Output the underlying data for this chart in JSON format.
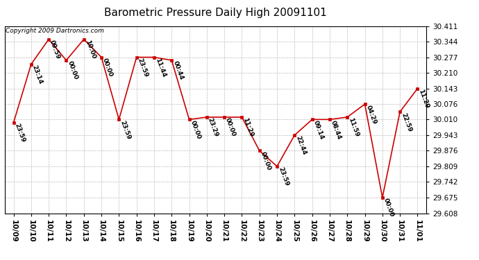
{
  "title": "Barometric Pressure Daily High 20091101",
  "copyright": "Copyright 2009 Dartronics.com",
  "x_labels": [
    "10/09",
    "10/10",
    "10/11",
    "10/12",
    "10/13",
    "10/14",
    "10/15",
    "10/16",
    "10/17",
    "10/18",
    "10/19",
    "10/20",
    "10/21",
    "10/22",
    "10/23",
    "10/24",
    "10/25",
    "10/26",
    "10/27",
    "10/28",
    "10/29",
    "10/30",
    "10/31",
    "11/01"
  ],
  "x_values": [
    0,
    1,
    2,
    3,
    4,
    5,
    6,
    7,
    8,
    9,
    10,
    11,
    12,
    13,
    14,
    15,
    16,
    17,
    18,
    19,
    20,
    21,
    22,
    23
  ],
  "y_values": [
    29.997,
    30.247,
    30.354,
    30.264,
    30.354,
    30.277,
    30.01,
    30.277,
    30.277,
    30.264,
    30.01,
    30.02,
    30.02,
    30.02,
    29.876,
    29.809,
    29.943,
    30.01,
    30.01,
    30.02,
    30.076,
    29.675,
    30.043,
    30.143
  ],
  "annotations": [
    "23:59",
    "23:14",
    "09:59",
    "00:00",
    "10:00",
    "00:00",
    "23:59",
    "23:59",
    "11:44",
    "00:44",
    "00:00",
    "23:29",
    "00:00",
    "11:29",
    "00:00",
    "23:59",
    "22:44",
    "09:14",
    "08:44",
    "11:59",
    "04:29",
    "00:00",
    "22:59",
    "11:29"
  ],
  "ylim_min": 29.608,
  "ylim_max": 30.411,
  "ytick_values": [
    29.608,
    29.675,
    29.742,
    29.809,
    29.876,
    29.943,
    30.01,
    30.076,
    30.143,
    30.21,
    30.277,
    30.344,
    30.411
  ],
  "line_color": "#CC0000",
  "marker_color": "#CC0000",
  "marker_face": "#CC0000",
  "bg_color": "#FFFFFF",
  "grid_color": "#BBBBBB",
  "title_fontsize": 11,
  "annotation_fontsize": 6.5,
  "copyright_fontsize": 6.5,
  "tick_fontsize": 7.5
}
